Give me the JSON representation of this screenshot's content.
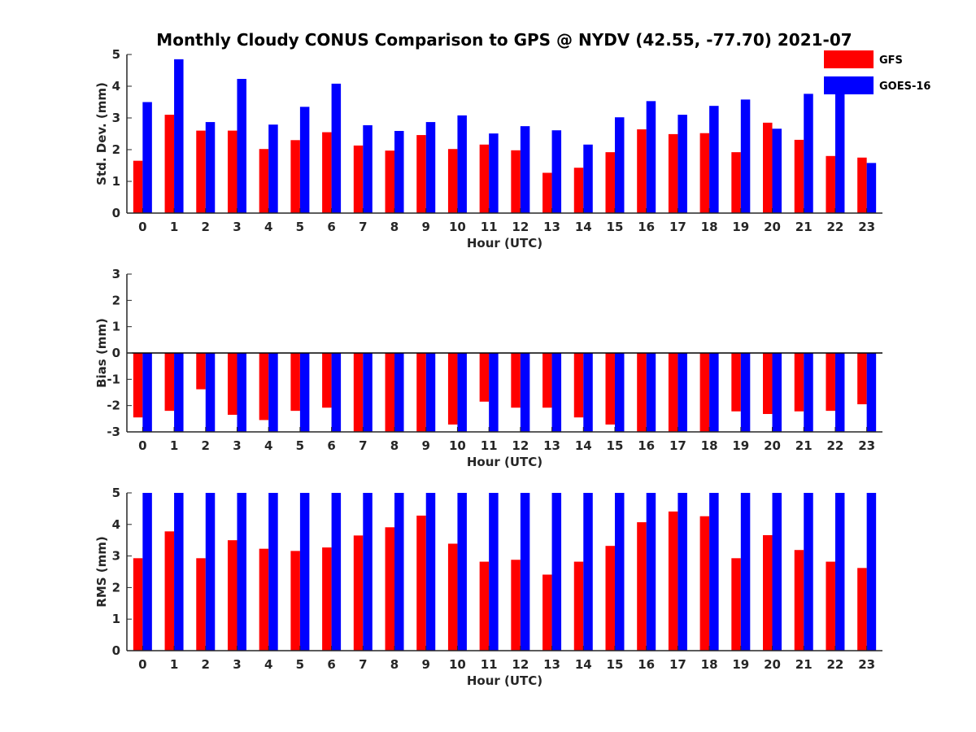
{
  "title": "Monthly Cloudy CONUS Comparison to GPS @ NYDV (42.55, -77.70) 2021-07",
  "colors": {
    "GFS": "#ff0000",
    "GOES-16": "#0000ff"
  },
  "legend": [
    "GFS",
    "GOES-16"
  ],
  "chart_data": [
    {
      "type": "bar",
      "x": [
        0,
        1,
        2,
        3,
        4,
        5,
        6,
        7,
        8,
        9,
        10,
        11,
        12,
        13,
        14,
        15,
        16,
        17,
        18,
        19,
        20,
        21,
        22,
        23
      ],
      "xlabel": "Hour (UTC)",
      "ylabel": "Std. Dev. (mm)",
      "ylim": [
        0,
        5
      ],
      "yticks": [
        0,
        1,
        2,
        3,
        4,
        5
      ],
      "legend": "top-right",
      "series": [
        {
          "name": "GFS",
          "values": [
            1.65,
            3.1,
            2.6,
            2.6,
            2.02,
            2.3,
            2.55,
            2.13,
            1.97,
            2.46,
            2.02,
            2.16,
            1.98,
            1.27,
            1.43,
            1.92,
            2.64,
            2.49,
            2.52,
            1.92,
            2.85,
            2.31,
            1.8,
            1.75
          ]
        },
        {
          "name": "GOES-16",
          "values": [
            3.5,
            4.85,
            2.87,
            4.23,
            2.79,
            3.35,
            4.08,
            2.77,
            2.59,
            2.87,
            3.08,
            2.51,
            2.74,
            2.61,
            2.16,
            3.02,
            3.53,
            3.1,
            3.38,
            3.58,
            2.66,
            3.76,
            4.0,
            1.58
          ]
        }
      ]
    },
    {
      "type": "bar",
      "x": [
        0,
        1,
        2,
        3,
        4,
        5,
        6,
        7,
        8,
        9,
        10,
        11,
        12,
        13,
        14,
        15,
        16,
        17,
        18,
        19,
        20,
        21,
        22,
        23
      ],
      "xlabel": "Hour (UTC)",
      "ylabel": "Bias (mm)",
      "ylim": [
        -3,
        3
      ],
      "yticks": [
        -3,
        -2,
        -1,
        0,
        1,
        2,
        3
      ],
      "series": [
        {
          "name": "GFS",
          "values": [
            -2.45,
            -2.2,
            -1.38,
            -2.35,
            -2.55,
            -2.2,
            -2.08,
            -3.0,
            -3.0,
            -3.0,
            -2.72,
            -1.85,
            -2.08,
            -2.08,
            -2.45,
            -2.72,
            -3.0,
            -3.0,
            -3.0,
            -2.22,
            -2.32,
            -2.22,
            -2.2,
            -1.95
          ]
        },
        {
          "name": "GOES-16",
          "values": [
            -3.0,
            -3.0,
            -3.0,
            -3.0,
            -3.0,
            -3.0,
            -3.0,
            -3.0,
            -3.0,
            -3.0,
            -3.0,
            -3.0,
            -3.0,
            -3.0,
            -3.0,
            -3.0,
            -3.0,
            -3.0,
            -3.0,
            -3.0,
            -3.0,
            -3.0,
            -3.0,
            -3.0
          ]
        }
      ]
    },
    {
      "type": "bar",
      "x": [
        0,
        1,
        2,
        3,
        4,
        5,
        6,
        7,
        8,
        9,
        10,
        11,
        12,
        13,
        14,
        15,
        16,
        17,
        18,
        19,
        20,
        21,
        22,
        23
      ],
      "xlabel": "Hour (UTC)",
      "ylabel": "RMS (mm)",
      "ylim": [
        0,
        5
      ],
      "yticks": [
        0,
        1,
        2,
        3,
        4,
        5
      ],
      "series": [
        {
          "name": "GFS",
          "values": [
            2.93,
            3.78,
            2.93,
            3.5,
            3.23,
            3.16,
            3.27,
            3.65,
            3.91,
            4.28,
            3.39,
            2.82,
            2.88,
            2.41,
            2.82,
            3.32,
            4.07,
            4.41,
            4.26,
            2.93,
            3.66,
            3.19,
            2.82,
            2.62
          ]
        },
        {
          "name": "GOES-16",
          "values": [
            5,
            5,
            5,
            5,
            5,
            5,
            5,
            5,
            5,
            5,
            5,
            5,
            5,
            5,
            5,
            5,
            5,
            5,
            5,
            5,
            5,
            5,
            5,
            5
          ]
        }
      ]
    }
  ]
}
